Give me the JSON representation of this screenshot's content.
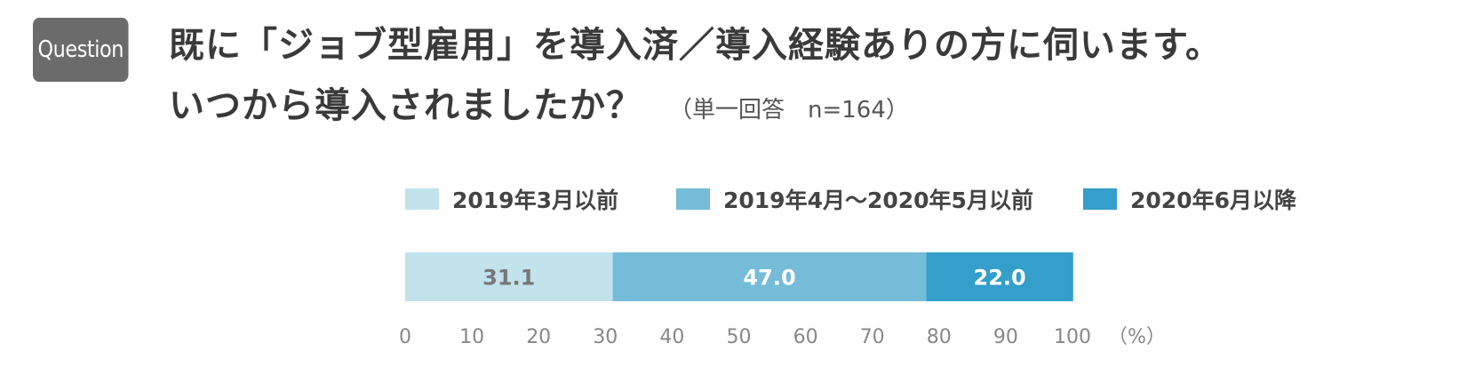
{
  "badge": {
    "label": "Question"
  },
  "title": {
    "line1": "既に「ジョブ型雇用」を導入済／導入経験ありの方に伺います。",
    "line2": "いつから導入されましたか？",
    "note": "（単一回答　n=164）"
  },
  "chart_data": {
    "type": "bar",
    "orientation": "horizontal",
    "stacked": true,
    "categories": [
      ""
    ],
    "series": [
      {
        "name": "2019年3月以前",
        "values": [
          31.1
        ],
        "label": "31.1",
        "color": "#c2e2ec",
        "label_color": "#777777"
      },
      {
        "name": "2019年4月～2020年5月以前",
        "values": [
          47.0
        ],
        "label": "47.0",
        "color": "#75bcd8",
        "label_color": "#ffffff"
      },
      {
        "name": "2020年6月以降",
        "values": [
          22.0
        ],
        "label": "22.0",
        "color": "#339fca",
        "label_color": "#ffffff"
      }
    ],
    "xlim": [
      0,
      100
    ],
    "xticks": [
      "0",
      "10",
      "20",
      "30",
      "40",
      "50",
      "60",
      "70",
      "80",
      "90",
      "100"
    ],
    "xunit": "（%）",
    "legend_position": "top",
    "grid": false
  }
}
